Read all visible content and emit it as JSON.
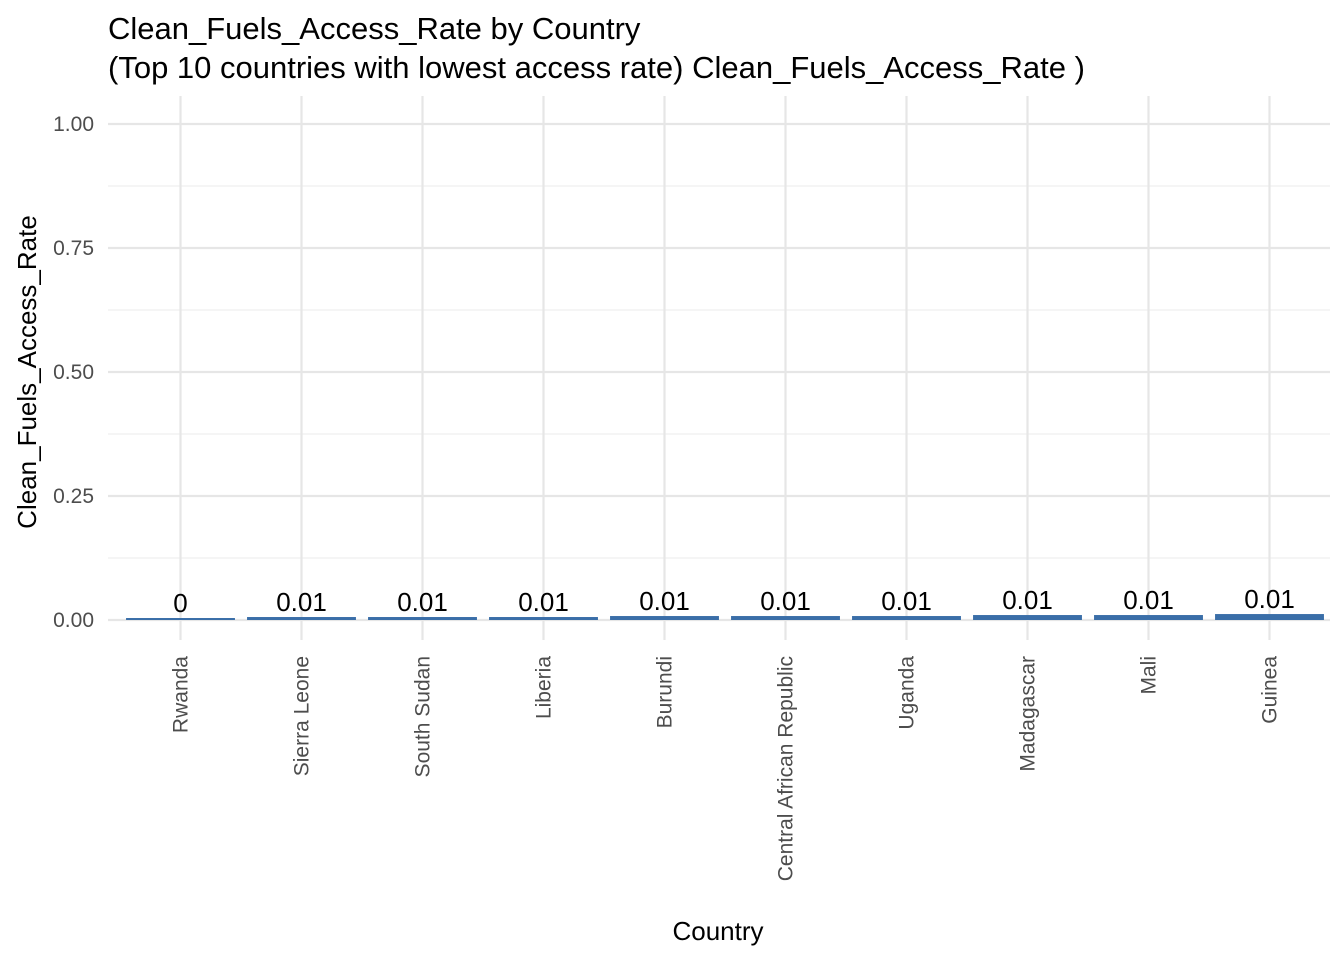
{
  "chart_data": {
    "type": "bar",
    "title": "Clean_Fuels_Access_Rate by Country",
    "subtitle": "(Top 10 countries with lowest access rate) Clean_Fuels_Access_Rate )",
    "xlabel": "Country",
    "ylabel": "Clean_Fuels_Access_Rate",
    "categories": [
      "Rwanda",
      "Sierra Leone",
      "South Sudan",
      "Liberia",
      "Burundi",
      "Central African Republic",
      "Uganda",
      "Madagascar",
      "Mali",
      "Guinea"
    ],
    "values": [
      0.004,
      0.006,
      0.006,
      0.006,
      0.008,
      0.008,
      0.008,
      0.01,
      0.01,
      0.012
    ],
    "data_labels": [
      "0",
      "0.01",
      "0.01",
      "0.01",
      "0.01",
      "0.01",
      "0.01",
      "0.01",
      "0.01",
      "0.01"
    ],
    "ylim": [
      0,
      1
    ],
    "yticks": [
      0,
      0.25,
      0.5,
      0.75,
      1
    ],
    "ytick_labels": [
      "0.00",
      "0.25",
      "0.50",
      "0.75",
      "1.00"
    ],
    "grid": true,
    "legend": "none",
    "bar_color": "#3a6ea8"
  }
}
